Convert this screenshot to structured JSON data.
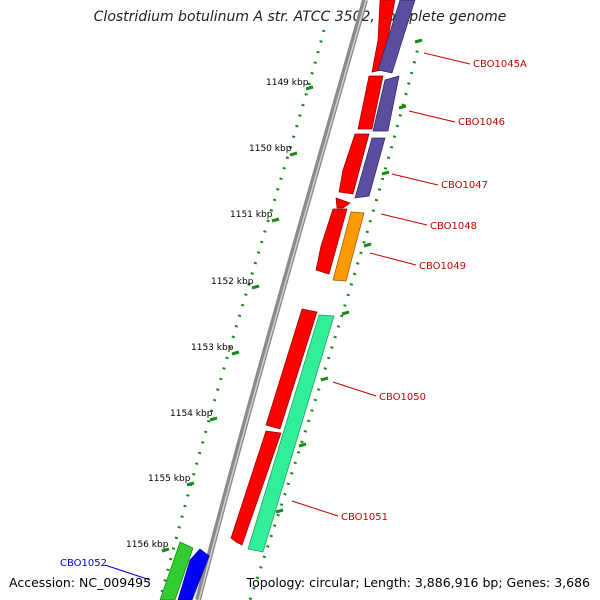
{
  "title": "Clostridium botulinum A str. ATCC 3502, complete genome",
  "accession_label": "Accession: NC_009495",
  "topology_label": "Topology: circular; Length: 3,886,916 bp; Genes: 3,686",
  "colors": {
    "backbone": "#8a8a8a",
    "tick": "#1a8a1a",
    "forward_red": "#ff0000",
    "cds_purple": "#5b4ea0",
    "cds_orange": "#ff9900",
    "cds_teal": "#33ee99",
    "cds_green": "#33cc33",
    "cds_blue": "#0000ff",
    "label_red": "#cc0000",
    "label_blue": "#0000cc"
  },
  "kbp_labels": [
    "1149 kbp",
    "1150 kbp",
    "1151 kbp",
    "1152 kbp",
    "1153 kbp",
    "1154 kbp",
    "1155 kbp",
    "1156 kbp"
  ],
  "genes": [
    {
      "label": "CBO1045A",
      "color": "red"
    },
    {
      "label": "CBO1046",
      "color": "red"
    },
    {
      "label": "CBO1047",
      "color": "red"
    },
    {
      "label": "CBO1048",
      "color": "red"
    },
    {
      "label": "CBO1049",
      "color": "red"
    },
    {
      "label": "CBO1050",
      "color": "red"
    },
    {
      "label": "CBO1051",
      "color": "red"
    },
    {
      "label": "CBO1052",
      "color": "blue"
    }
  ]
}
